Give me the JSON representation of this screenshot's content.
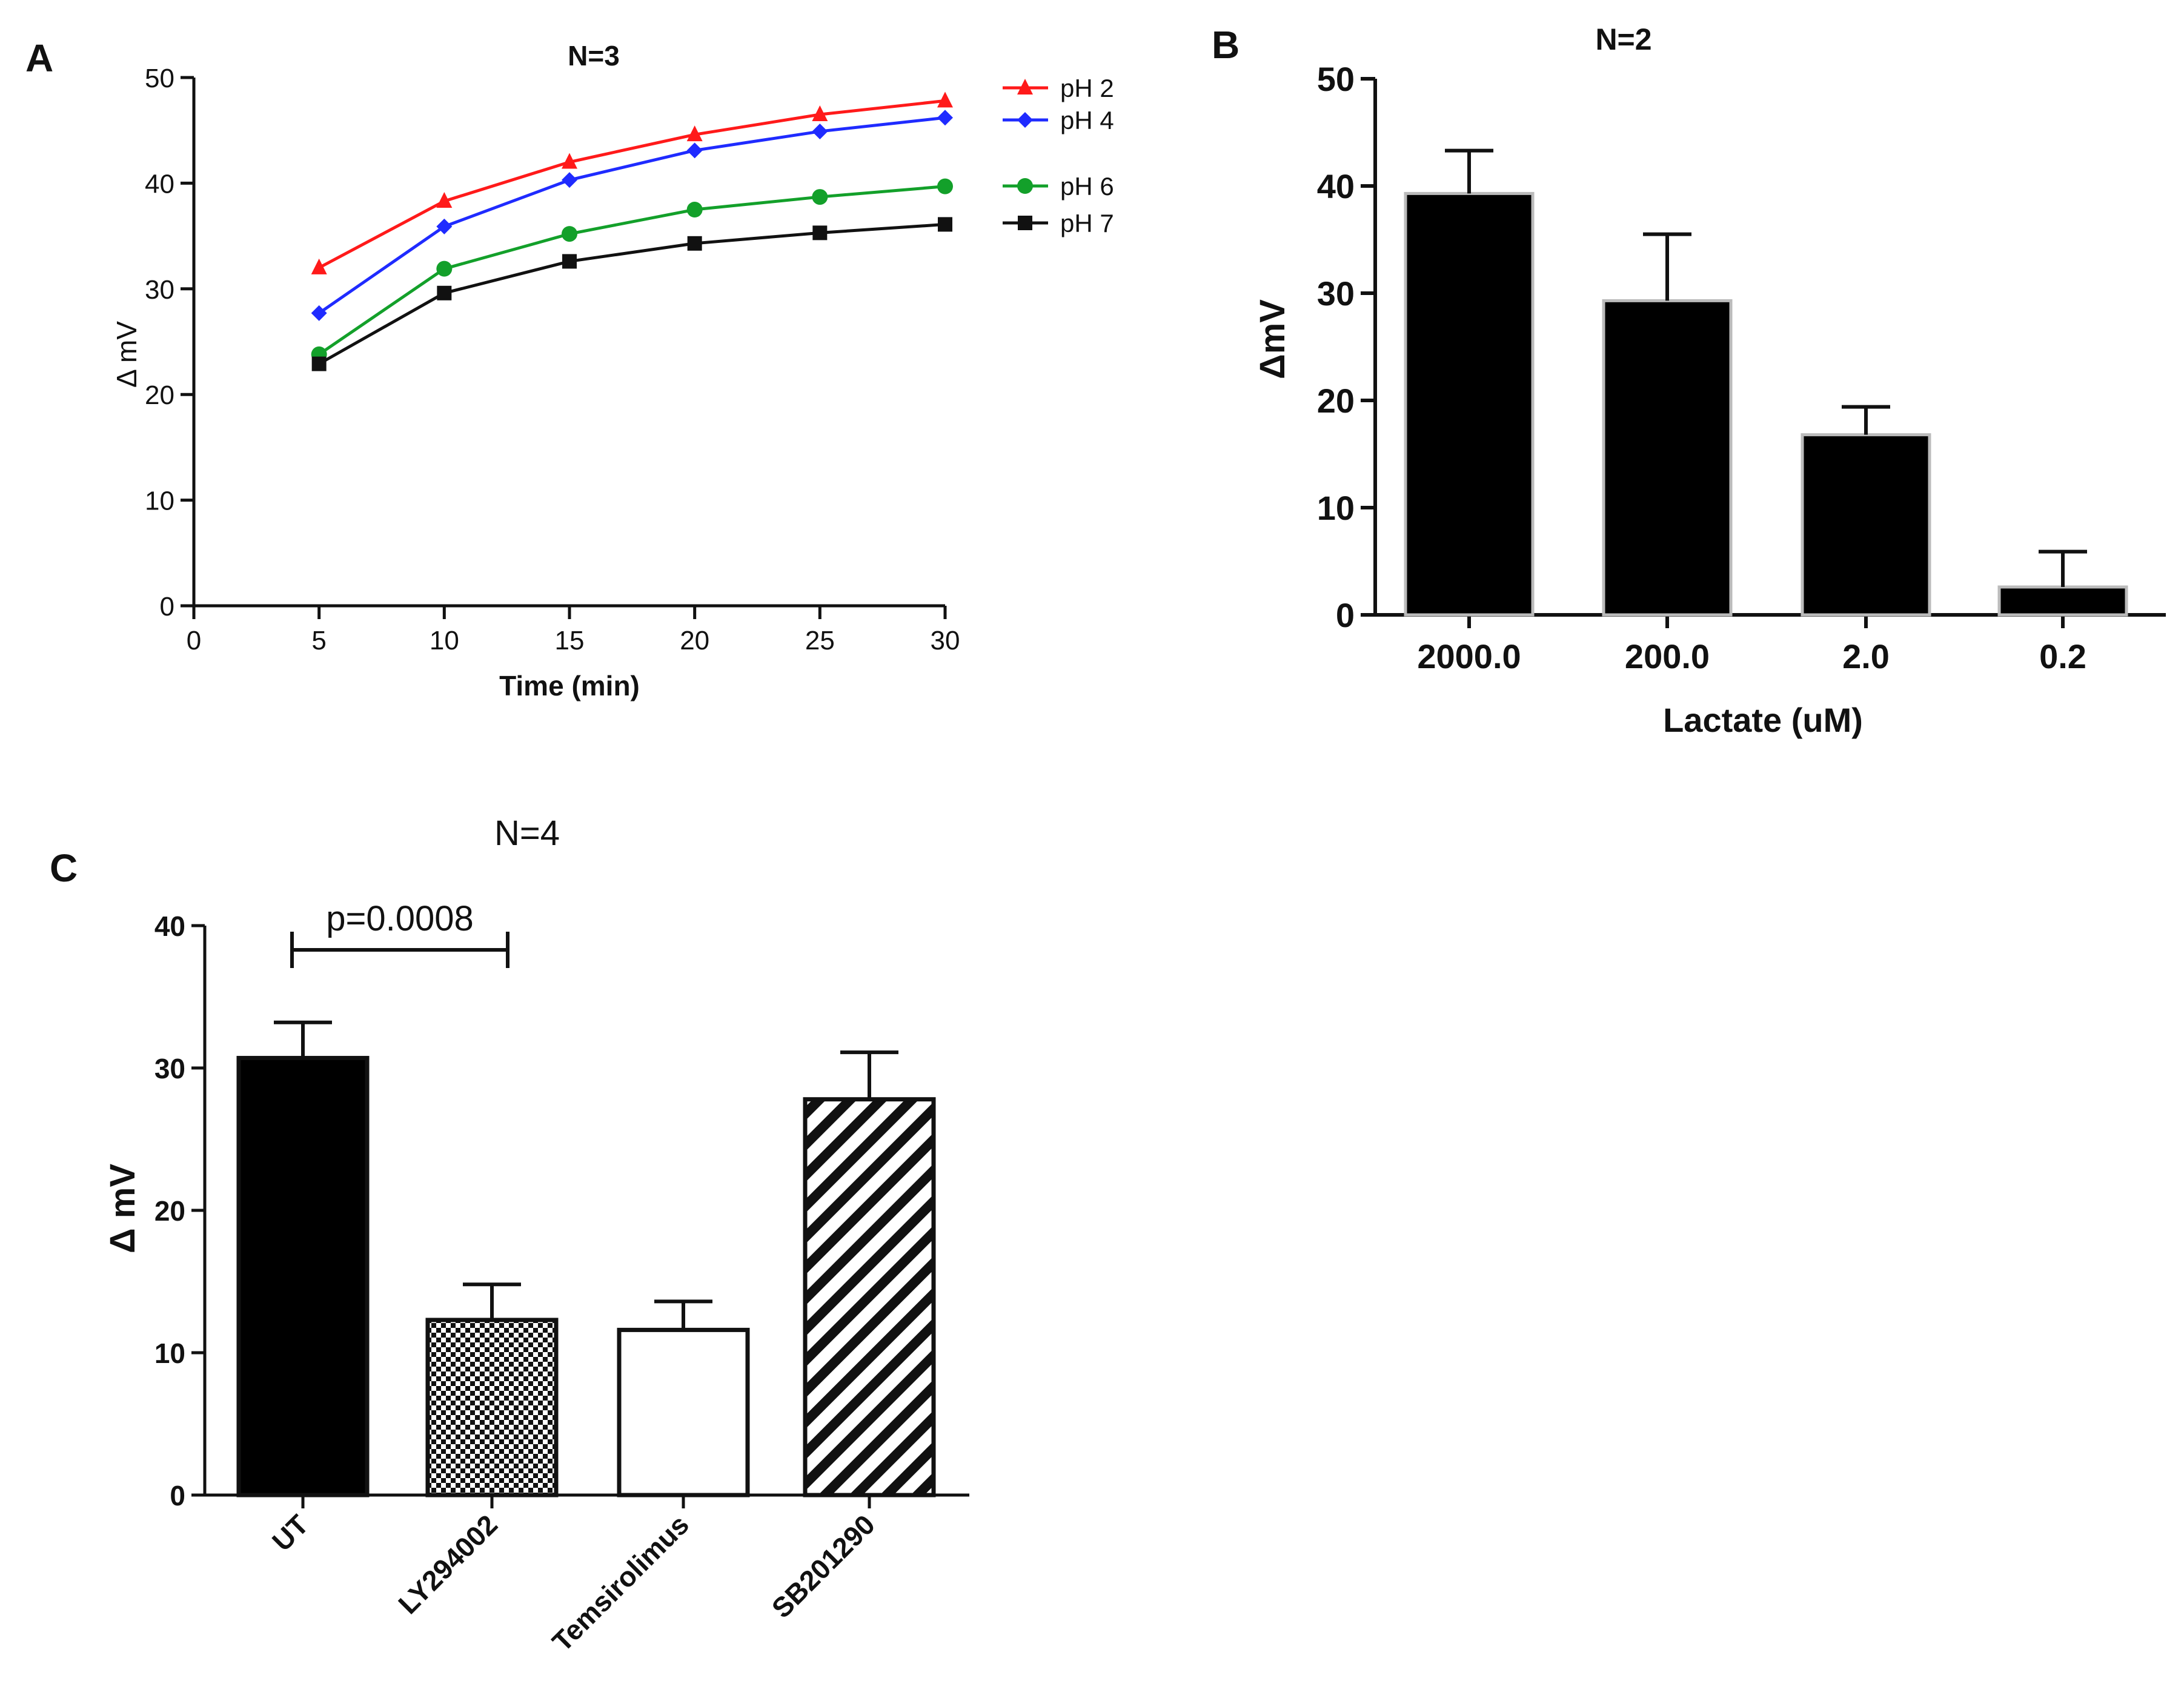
{
  "chart_data": [
    {
      "panel": "A",
      "type": "line",
      "title": "N=3",
      "xlabel": "Time (min)",
      "ylabel": "Δ mV",
      "xlim": [
        0,
        30
      ],
      "ylim": [
        0,
        50
      ],
      "xticks": [
        "0",
        "5",
        "10",
        "15",
        "20",
        "25",
        "30"
      ],
      "yticks": [
        "0",
        "10",
        "20",
        "30",
        "40",
        "50"
      ],
      "x": [
        5,
        10,
        15,
        20,
        25,
        30
      ],
      "series": [
        {
          "name": "pH 2",
          "color": "#ff1a1a",
          "marker": "triangle",
          "values": [
            32,
            38.3,
            42,
            44.6,
            46.5,
            47.8
          ]
        },
        {
          "name": "pH 4",
          "color": "#1f2bff",
          "marker": "diamond",
          "values": [
            27.7,
            35.9,
            40.3,
            43.1,
            44.9,
            46.2
          ]
        },
        {
          "name": "pH 6",
          "color": "#13a02a",
          "marker": "circle",
          "values": [
            23.8,
            31.9,
            35.2,
            37.5,
            38.7,
            39.7
          ]
        },
        {
          "name": "pH 7",
          "color": "#111111",
          "marker": "square",
          "values": [
            22.9,
            29.6,
            32.6,
            34.3,
            35.3,
            36.1
          ]
        }
      ]
    },
    {
      "panel": "B",
      "type": "bar",
      "title": "N=2",
      "xlabel": "Lactate (uM)",
      "ylabel": "ΔmV",
      "ylim": [
        0,
        50
      ],
      "yticks": [
        "0",
        "10",
        "20",
        "30",
        "40",
        "50"
      ],
      "categories": [
        "2000.0",
        "200.0",
        "2.0",
        "0.2"
      ],
      "values": [
        39.3,
        29.3,
        16.8,
        2.6
      ],
      "errors": [
        4.0,
        6.2,
        2.6,
        3.3
      ]
    },
    {
      "panel": "C",
      "type": "bar",
      "title": "N=4",
      "xlabel": "",
      "ylabel": "Δ mV",
      "ylim": [
        0,
        40
      ],
      "yticks": [
        "0",
        "10",
        "20",
        "30",
        "40"
      ],
      "categories": [
        "UT",
        "LY294002",
        "Temsirolimus",
        "SB201290"
      ],
      "values": [
        30.7,
        12.3,
        11.6,
        27.8
      ],
      "errors": [
        2.5,
        2.5,
        2.0,
        3.3
      ],
      "fills": [
        "solid",
        "checker",
        "none",
        "diagonal"
      ],
      "annotation": {
        "text": "p=0.0008",
        "from": 0,
        "to": 1,
        "y": 38.3
      }
    }
  ]
}
